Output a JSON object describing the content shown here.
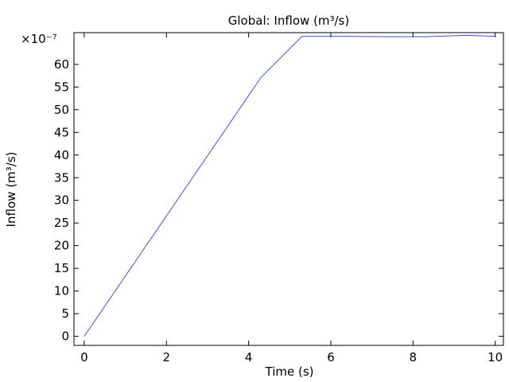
{
  "chart_data": {
    "type": "line",
    "title": "Global: Inflow (m³/s)",
    "xlabel": "Time (s)",
    "ylabel": "Inflow (m³/s)",
    "y_multiplier_label": "×10⁻⁷",
    "xlim": [
      -0.25,
      10.2
    ],
    "ylim": [
      -2,
      67
    ],
    "x_ticks": [
      0,
      2,
      4,
      6,
      8,
      10
    ],
    "y_ticks": [
      0,
      5,
      10,
      15,
      20,
      25,
      30,
      35,
      40,
      45,
      50,
      55,
      60
    ],
    "grid": false,
    "legend": "none",
    "series_color": "#3355dd",
    "series": [
      {
        "x": [
          0,
          4.3,
          5.3,
          6.3,
          7.3,
          8.3,
          9.3,
          10
        ],
        "y": [
          0,
          57.1,
          66.2,
          66.2,
          66.1,
          66.1,
          66.4,
          66.2
        ]
      }
    ]
  }
}
